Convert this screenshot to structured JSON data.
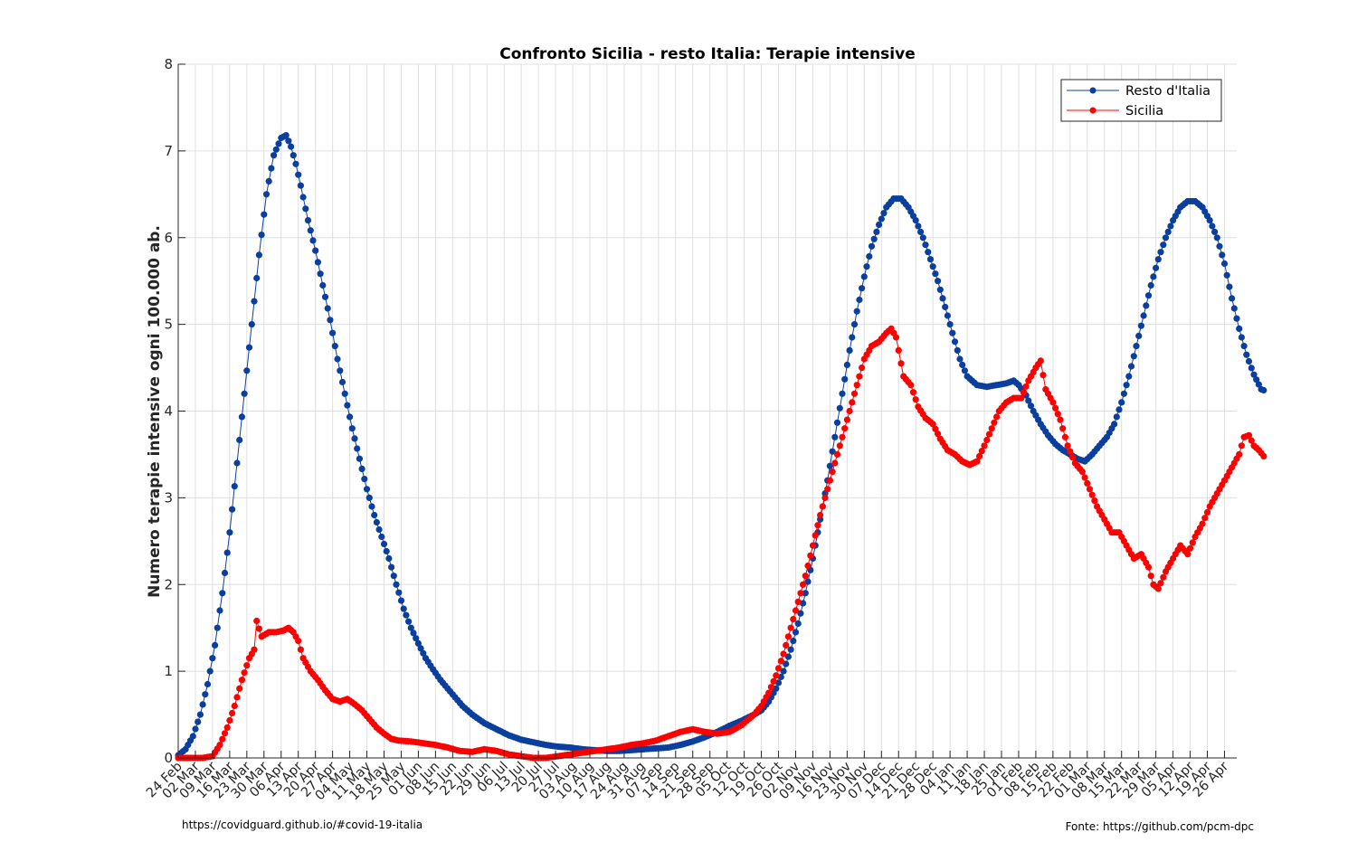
{
  "chart_data": {
    "type": "line",
    "title": "Confronto Sicilia - resto Italia: Terapie intensive",
    "xlabel": "",
    "ylabel": "Numero terapie intensive ogni 100.000 ab.",
    "ylim": [
      0,
      8
    ],
    "yticks": [
      "0",
      "1",
      "2",
      "3",
      "4",
      "5",
      "6",
      "7",
      "8"
    ],
    "grid": true,
    "legend_position": "top-right",
    "x_start": "2020-02-24",
    "x_days": 432,
    "xticks": [
      "24 Feb",
      "02 Mar",
      "09 Mar",
      "16 Mar",
      "23 Mar",
      "30 Mar",
      "06 Apr",
      "13 Apr",
      "20 Apr",
      "27 Apr",
      "04 May",
      "11 May",
      "18 May",
      "25 May",
      "01 Jun",
      "08 Jun",
      "15 Jun",
      "22 Jun",
      "29 Jun",
      "06 Jul",
      "13 Jul",
      "20 Jul",
      "27 Jul",
      "03 Aug",
      "10 Aug",
      "17 Aug",
      "24 Aug",
      "31 Aug",
      "07 Sep",
      "14 Sep",
      "21 Sep",
      "28 Sep",
      "05 Oct",
      "12 Oct",
      "19 Oct",
      "26 Oct",
      "02 Nov",
      "09 Nov",
      "16 Nov",
      "23 Nov",
      "30 Nov",
      "07 Dec",
      "14 Dec",
      "21 Dec",
      "28 Dec",
      "04 Jan",
      "11 Jan",
      "18 Jan",
      "25 Jan",
      "01 Feb",
      "08 Feb",
      "15 Feb",
      "22 Feb",
      "01 Mar",
      "08 Mar",
      "15 Mar",
      "22 Mar",
      "29 Mar",
      "05 Apr",
      "12 Apr",
      "19 Apr",
      "26 Apr"
    ],
    "series": [
      {
        "name": "Resto d'Italia",
        "color": "#0b3f9e",
        "marker": "circle",
        "points": [
          [
            0,
            0.03
          ],
          [
            3,
            0.1
          ],
          [
            6,
            0.25
          ],
          [
            9,
            0.5
          ],
          [
            12,
            0.85
          ],
          [
            15,
            1.3
          ],
          [
            18,
            1.9
          ],
          [
            21,
            2.6
          ],
          [
            24,
            3.4
          ],
          [
            27,
            4.2
          ],
          [
            30,
            5.0
          ],
          [
            33,
            5.8
          ],
          [
            36,
            6.5
          ],
          [
            39,
            6.95
          ],
          [
            42,
            7.15
          ],
          [
            44,
            7.18
          ],
          [
            46,
            7.05
          ],
          [
            48,
            6.85
          ],
          [
            50,
            6.6
          ],
          [
            53,
            6.2
          ],
          [
            56,
            5.85
          ],
          [
            59,
            5.45
          ],
          [
            62,
            5.05
          ],
          [
            65,
            4.6
          ],
          [
            68,
            4.2
          ],
          [
            71,
            3.8
          ],
          [
            74,
            3.45
          ],
          [
            77,
            3.1
          ],
          [
            80,
            2.8
          ],
          [
            83,
            2.55
          ],
          [
            86,
            2.3
          ],
          [
            89,
            2.0
          ],
          [
            92,
            1.72
          ],
          [
            95,
            1.5
          ],
          [
            98,
            1.32
          ],
          [
            101,
            1.15
          ],
          [
            104,
            1.02
          ],
          [
            107,
            0.9
          ],
          [
            110,
            0.8
          ],
          [
            113,
            0.7
          ],
          [
            116,
            0.6
          ],
          [
            120,
            0.5
          ],
          [
            125,
            0.4
          ],
          [
            130,
            0.33
          ],
          [
            135,
            0.26
          ],
          [
            140,
            0.21
          ],
          [
            145,
            0.18
          ],
          [
            150,
            0.15
          ],
          [
            155,
            0.13
          ],
          [
            160,
            0.12
          ],
          [
            165,
            0.1
          ],
          [
            170,
            0.09
          ],
          [
            175,
            0.08
          ],
          [
            180,
            0.08
          ],
          [
            185,
            0.09
          ],
          [
            190,
            0.1
          ],
          [
            195,
            0.11
          ],
          [
            200,
            0.12
          ],
          [
            205,
            0.15
          ],
          [
            210,
            0.19
          ],
          [
            215,
            0.24
          ],
          [
            220,
            0.3
          ],
          [
            225,
            0.37
          ],
          [
            230,
            0.43
          ],
          [
            235,
            0.5
          ],
          [
            238,
            0.55
          ],
          [
            241,
            0.65
          ],
          [
            244,
            0.8
          ],
          [
            247,
            1.0
          ],
          [
            250,
            1.25
          ],
          [
            253,
            1.55
          ],
          [
            256,
            1.9
          ],
          [
            259,
            2.3
          ],
          [
            262,
            2.75
          ],
          [
            265,
            3.2
          ],
          [
            268,
            3.7
          ],
          [
            271,
            4.2
          ],
          [
            274,
            4.7
          ],
          [
            277,
            5.15
          ],
          [
            280,
            5.55
          ],
          [
            283,
            5.9
          ],
          [
            286,
            6.15
          ],
          [
            289,
            6.35
          ],
          [
            292,
            6.45
          ],
          [
            295,
            6.45
          ],
          [
            298,
            6.35
          ],
          [
            301,
            6.2
          ],
          [
            304,
            6.0
          ],
          [
            307,
            5.75
          ],
          [
            310,
            5.5
          ],
          [
            313,
            5.2
          ],
          [
            316,
            4.9
          ],
          [
            319,
            4.6
          ],
          [
            322,
            4.4
          ],
          [
            326,
            4.3
          ],
          [
            330,
            4.28
          ],
          [
            334,
            4.3
          ],
          [
            338,
            4.32
          ],
          [
            341,
            4.35
          ],
          [
            343,
            4.3
          ],
          [
            346,
            4.18
          ],
          [
            349,
            4.0
          ],
          [
            352,
            3.85
          ],
          [
            355,
            3.72
          ],
          [
            358,
            3.62
          ],
          [
            361,
            3.55
          ],
          [
            364,
            3.5
          ],
          [
            367,
            3.45
          ],
          [
            370,
            3.42
          ],
          [
            373,
            3.5
          ],
          [
            376,
            3.6
          ],
          [
            379,
            3.7
          ],
          [
            382,
            3.85
          ],
          [
            385,
            4.1
          ],
          [
            388,
            4.4
          ],
          [
            391,
            4.75
          ],
          [
            394,
            5.1
          ],
          [
            397,
            5.45
          ],
          [
            400,
            5.75
          ],
          [
            403,
            6.0
          ],
          [
            406,
            6.2
          ],
          [
            409,
            6.35
          ],
          [
            412,
            6.42
          ],
          [
            415,
            6.42
          ],
          [
            418,
            6.35
          ],
          [
            421,
            6.2
          ],
          [
            424,
            6.0
          ],
          [
            427,
            5.7
          ],
          [
            430,
            5.3
          ],
          [
            433,
            4.95
          ],
          [
            436,
            4.65
          ],
          [
            439,
            4.42
          ],
          [
            442,
            4.25
          ],
          [
            443,
            4.24
          ]
        ]
      },
      {
        "name": "Sicilia",
        "color": "#ff0000",
        "marker": "circle",
        "points": [
          [
            0,
            0.0
          ],
          [
            5,
            0.0
          ],
          [
            10,
            0.0
          ],
          [
            14,
            0.02
          ],
          [
            17,
            0.15
          ],
          [
            20,
            0.35
          ],
          [
            23,
            0.6
          ],
          [
            26,
            0.9
          ],
          [
            29,
            1.15
          ],
          [
            31,
            1.25
          ],
          [
            32,
            1.58
          ],
          [
            34,
            1.4
          ],
          [
            37,
            1.45
          ],
          [
            40,
            1.45
          ],
          [
            43,
            1.47
          ],
          [
            45,
            1.5
          ],
          [
            47,
            1.45
          ],
          [
            49,
            1.35
          ],
          [
            51,
            1.15
          ],
          [
            54,
            1.0
          ],
          [
            57,
            0.9
          ],
          [
            60,
            0.78
          ],
          [
            63,
            0.68
          ],
          [
            66,
            0.65
          ],
          [
            69,
            0.68
          ],
          [
            72,
            0.62
          ],
          [
            75,
            0.55
          ],
          [
            78,
            0.45
          ],
          [
            81,
            0.35
          ],
          [
            84,
            0.28
          ],
          [
            87,
            0.22
          ],
          [
            90,
            0.2
          ],
          [
            95,
            0.19
          ],
          [
            100,
            0.17
          ],
          [
            105,
            0.15
          ],
          [
            110,
            0.12
          ],
          [
            115,
            0.08
          ],
          [
            120,
            0.07
          ],
          [
            125,
            0.1
          ],
          [
            130,
            0.08
          ],
          [
            135,
            0.04
          ],
          [
            140,
            0.02
          ],
          [
            145,
            0.0
          ],
          [
            150,
            0.0
          ],
          [
            155,
            0.02
          ],
          [
            160,
            0.04
          ],
          [
            165,
            0.06
          ],
          [
            170,
            0.08
          ],
          [
            175,
            0.1
          ],
          [
            180,
            0.12
          ],
          [
            185,
            0.15
          ],
          [
            190,
            0.17
          ],
          [
            195,
            0.2
          ],
          [
            200,
            0.25
          ],
          [
            205,
            0.3
          ],
          [
            210,
            0.33
          ],
          [
            215,
            0.3
          ],
          [
            220,
            0.28
          ],
          [
            225,
            0.3
          ],
          [
            230,
            0.38
          ],
          [
            235,
            0.5
          ],
          [
            238,
            0.6
          ],
          [
            241,
            0.75
          ],
          [
            244,
            0.95
          ],
          [
            247,
            1.2
          ],
          [
            250,
            1.5
          ],
          [
            253,
            1.8
          ],
          [
            256,
            2.1
          ],
          [
            259,
            2.45
          ],
          [
            262,
            2.8
          ],
          [
            265,
            3.1
          ],
          [
            268,
            3.4
          ],
          [
            271,
            3.7
          ],
          [
            274,
            4.0
          ],
          [
            277,
            4.3
          ],
          [
            280,
            4.6
          ],
          [
            283,
            4.75
          ],
          [
            286,
            4.8
          ],
          [
            289,
            4.9
          ],
          [
            291,
            4.95
          ],
          [
            293,
            4.85
          ],
          [
            296,
            4.4
          ],
          [
            299,
            4.3
          ],
          [
            302,
            4.05
          ],
          [
            305,
            3.92
          ],
          [
            308,
            3.85
          ],
          [
            311,
            3.68
          ],
          [
            314,
            3.55
          ],
          [
            317,
            3.5
          ],
          [
            320,
            3.42
          ],
          [
            323,
            3.38
          ],
          [
            326,
            3.42
          ],
          [
            329,
            3.6
          ],
          [
            332,
            3.8
          ],
          [
            335,
            4.0
          ],
          [
            338,
            4.1
          ],
          [
            341,
            4.15
          ],
          [
            344,
            4.15
          ],
          [
            347,
            4.35
          ],
          [
            350,
            4.5
          ],
          [
            352,
            4.58
          ],
          [
            354,
            4.25
          ],
          [
            357,
            4.1
          ],
          [
            360,
            3.9
          ],
          [
            363,
            3.6
          ],
          [
            366,
            3.4
          ],
          [
            369,
            3.3
          ],
          [
            372,
            3.1
          ],
          [
            375,
            2.9
          ],
          [
            378,
            2.75
          ],
          [
            381,
            2.6
          ],
          [
            384,
            2.6
          ],
          [
            387,
            2.45
          ],
          [
            390,
            2.3
          ],
          [
            393,
            2.35
          ],
          [
            396,
            2.2
          ],
          [
            398,
            2.0
          ],
          [
            400,
            1.95
          ],
          [
            403,
            2.15
          ],
          [
            406,
            2.3
          ],
          [
            409,
            2.45
          ],
          [
            412,
            2.35
          ],
          [
            415,
            2.55
          ],
          [
            418,
            2.7
          ],
          [
            421,
            2.9
          ],
          [
            424,
            3.05
          ],
          [
            427,
            3.2
          ],
          [
            430,
            3.35
          ],
          [
            433,
            3.5
          ],
          [
            435,
            3.7
          ],
          [
            437,
            3.72
          ],
          [
            439,
            3.6
          ],
          [
            441,
            3.55
          ],
          [
            443,
            3.48
          ]
        ]
      }
    ]
  },
  "footer": {
    "left": "https://covidguard.github.io/#covid-19-italia",
    "right": "Fonte: https://github.com/pcm-dpc"
  }
}
